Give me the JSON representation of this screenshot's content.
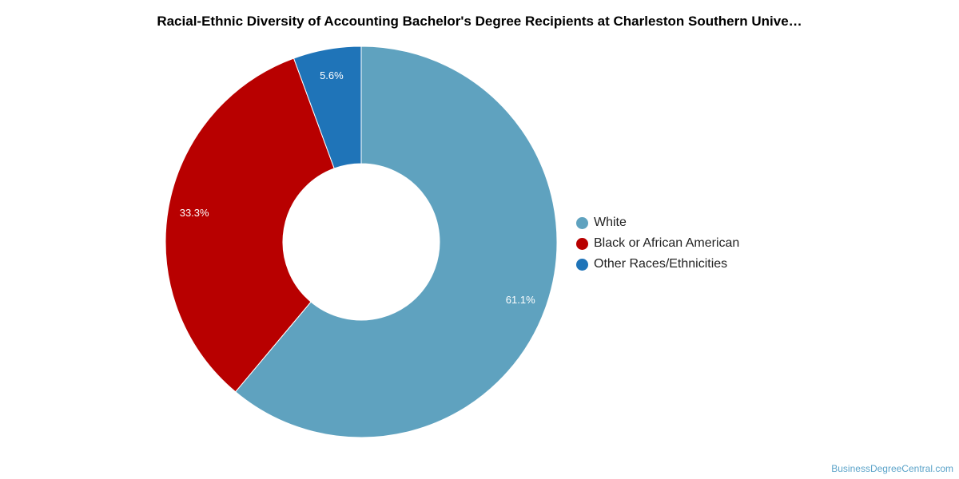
{
  "chart_data": {
    "type": "pie",
    "title": "Racial-Ethnic Diversity of Accounting Bachelor's Degree Recipients at Charleston Southern Unive…",
    "donut": true,
    "start_angle_deg": 0,
    "legend_position": "right",
    "slices": [
      {
        "label": "White",
        "value": 61.1,
        "display": "61.1%",
        "color": "#5fa2bf"
      },
      {
        "label": "Black or African American",
        "value": 33.3,
        "display": "33.3%",
        "color": "#b80000"
      },
      {
        "label": "Other Races/Ethnicities",
        "value": 5.6,
        "display": "5.6%",
        "color": "#1f74b8"
      }
    ]
  },
  "footer": {
    "source": "BusinessDegreeCentral.com"
  }
}
